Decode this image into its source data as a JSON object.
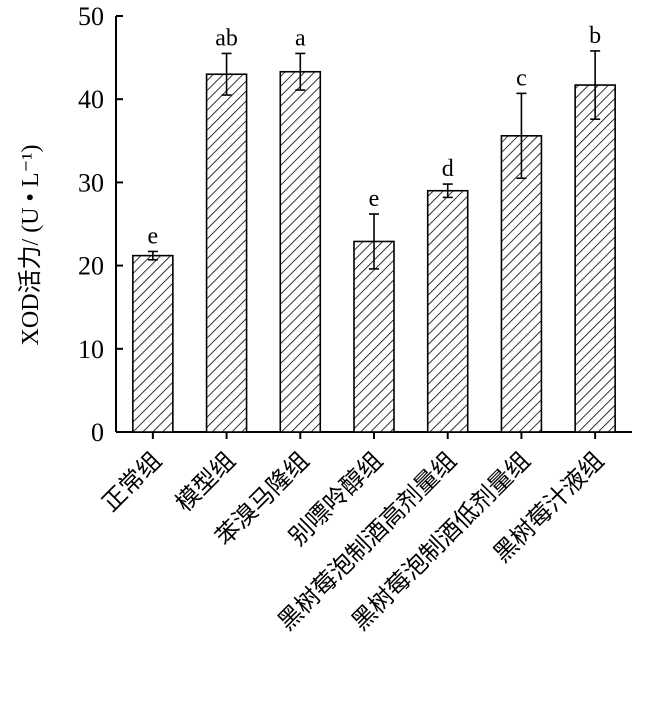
{
  "chart_data": {
    "type": "bar",
    "categories": [
      "正常组",
      "模型组",
      "苯溴马隆组",
      "别嘌呤醇组",
      "黑树莓泡制酒高剂量组",
      "黑树莓泡制酒低剂量组",
      "黑树莓汁液组"
    ],
    "values": [
      21.2,
      43.0,
      43.3,
      22.9,
      29.0,
      35.6,
      41.7
    ],
    "errors": [
      0.5,
      2.5,
      2.2,
      3.3,
      0.8,
      5.1,
      4.1
    ],
    "significance": [
      "e",
      "ab",
      "a",
      "e",
      "d",
      "c",
      "b"
    ],
    "ylabel": "XOD活力/ (U • L⁻¹)",
    "ylim": [
      0,
      50
    ],
    "yticks": [
      0,
      10,
      20,
      30,
      40,
      50
    ],
    "grid": false,
    "bar_fill": "diagonal-hatch",
    "bar_color": "#000000"
  }
}
